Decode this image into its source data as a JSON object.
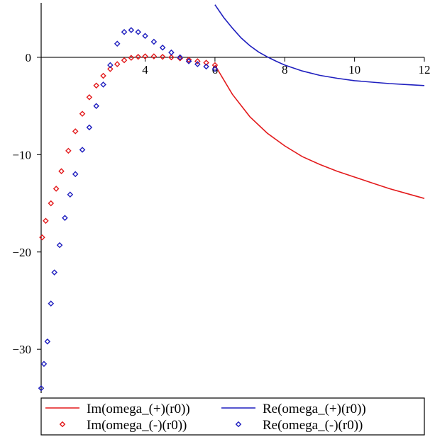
{
  "chart_data": {
    "type": "line",
    "title": "",
    "xlabel": "",
    "ylabel": "",
    "xlim": [
      1.02,
      12
    ],
    "ylim": [
      -34.5,
      5.6
    ],
    "grid": false,
    "legend_position": "bottom",
    "x_ticks": [
      {
        "value": 4,
        "label": "4"
      },
      {
        "value": 6,
        "label": "6"
      },
      {
        "value": 8,
        "label": "8"
      },
      {
        "value": 10,
        "label": "10"
      },
      {
        "value": 12,
        "label": "12"
      }
    ],
    "y_ticks": [
      {
        "value": 0,
        "label": "0"
      },
      {
        "value": -10,
        "label": "-10"
      },
      {
        "value": -20,
        "label": "-20"
      },
      {
        "value": -30,
        "label": "-30"
      }
    ],
    "series": [
      {
        "name": "Im(omega_(+)(r0))",
        "style": "line",
        "color": "#e31a1c",
        "x": [
          6.0,
          6.5,
          7.0,
          7.5,
          8.0,
          8.5,
          9.0,
          9.5,
          10.0,
          10.5,
          11.0,
          11.5,
          12.0
        ],
        "y": [
          -0.8,
          -3.8,
          -6.1,
          -7.8,
          -9.1,
          -10.2,
          -11.0,
          -11.7,
          -12.3,
          -12.9,
          -13.5,
          -14.0,
          -14.5
        ]
      },
      {
        "name": "Re(omega_(+)(r0))",
        "style": "line",
        "color": "#1f1fbf",
        "x": [
          6.0,
          6.25,
          6.5,
          6.75,
          7.0,
          7.25,
          7.5,
          7.75,
          8.0,
          8.5,
          9.0,
          9.5,
          10.0,
          10.5,
          11.0,
          11.5,
          12.0
        ],
        "y": [
          5.4,
          4.1,
          3.0,
          2.0,
          1.2,
          0.55,
          0.05,
          -0.4,
          -0.8,
          -1.4,
          -1.85,
          -2.15,
          -2.4,
          -2.55,
          -2.7,
          -2.8,
          -2.9
        ]
      },
      {
        "name": "Im(omega_(-)(r0))",
        "style": "markers",
        "color": "#e31a1c",
        "x": [
          1.05,
          1.15,
          1.3,
          1.45,
          1.6,
          1.8,
          2.0,
          2.2,
          2.4,
          2.6,
          2.8,
          3.0,
          3.2,
          3.4,
          3.6,
          3.8,
          4.0,
          4.25,
          4.5,
          4.75,
          5.0,
          5.25,
          5.5,
          5.75,
          6.0
        ],
        "y": [
          -18.5,
          -16.8,
          -15.0,
          -13.5,
          -11.7,
          -9.6,
          -7.6,
          -5.8,
          -4.1,
          -2.9,
          -1.9,
          -1.2,
          -0.7,
          -0.3,
          -0.05,
          0.05,
          0.1,
          0.1,
          0.05,
          0.0,
          -0.1,
          -0.25,
          -0.4,
          -0.55,
          -0.8
        ]
      },
      {
        "name": "Re(omega_(-)(r0))",
        "style": "markers",
        "color": "#1f1fbf",
        "x": [
          1.02,
          1.1,
          1.2,
          1.3,
          1.4,
          1.55,
          1.7,
          1.85,
          2.0,
          2.2,
          2.4,
          2.6,
          2.8,
          3.0,
          3.2,
          3.4,
          3.6,
          3.8,
          4.0,
          4.25,
          4.5,
          4.75,
          5.0,
          5.25,
          5.5,
          5.75,
          6.0
        ],
        "y": [
          -34.0,
          -31.5,
          -29.2,
          -25.3,
          -22.1,
          -19.3,
          -16.5,
          -14.1,
          -12.0,
          -9.5,
          -7.2,
          -5.0,
          -2.8,
          -0.8,
          1.4,
          2.6,
          2.8,
          2.6,
          2.2,
          1.6,
          1.0,
          0.5,
          0.0,
          -0.4,
          -0.7,
          -0.95,
          -1.2
        ]
      }
    ]
  }
}
